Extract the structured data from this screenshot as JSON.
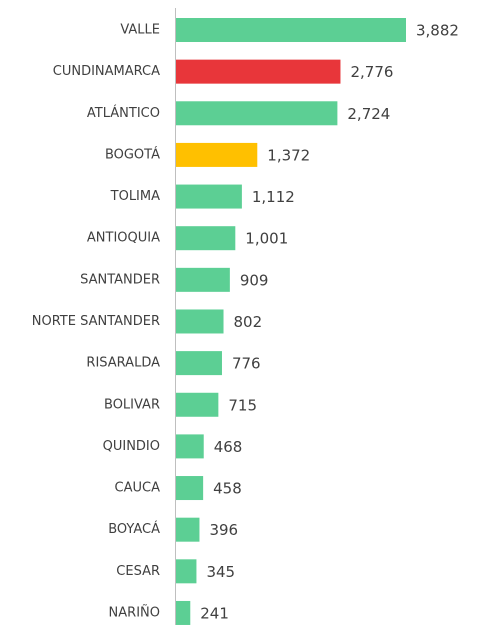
{
  "chart_data": {
    "type": "barh",
    "categories": [
      "VALLE",
      "CUNDINAMARCA",
      "ATLÁNTICO",
      "BOGOTÁ",
      "TOLIMA",
      "ANTIOQUIA",
      "SANTANDER",
      "NORTE SANTANDER",
      "RISARALDA",
      "BOLIVAR",
      "QUINDIO",
      "CAUCA",
      "BOYACÁ",
      "CESAR",
      "NARIÑO"
    ],
    "values": [
      3882,
      2776,
      2724,
      1372,
      1112,
      1001,
      909,
      802,
      776,
      715,
      468,
      458,
      396,
      345,
      241
    ],
    "value_labels": [
      "3,882",
      "2,776",
      "2,724",
      "1,372",
      "1,112",
      "1,001",
      "909",
      "802",
      "776",
      "715",
      "468",
      "458",
      "396",
      "345",
      "241"
    ],
    "colors": [
      "#5ccf94",
      "#e8363a",
      "#5ccf94",
      "#ffc000",
      "#5ccf94",
      "#5ccf94",
      "#5ccf94",
      "#5ccf94",
      "#5ccf94",
      "#5ccf94",
      "#5ccf94",
      "#5ccf94",
      "#5ccf94",
      "#5ccf94",
      "#5ccf94"
    ]
  }
}
